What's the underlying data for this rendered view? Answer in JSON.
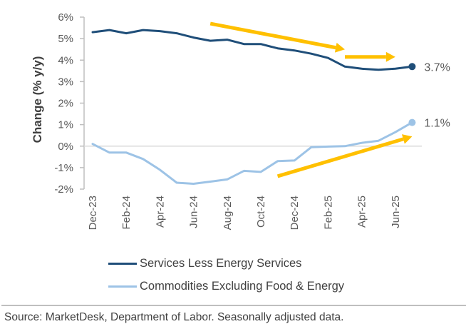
{
  "chart_data": {
    "type": "line",
    "title": "",
    "ylabel": "Change (% y/y)",
    "xlabel": "",
    "ylim": [
      -2,
      6
    ],
    "yticks": [
      -2,
      -1,
      0,
      1,
      2,
      3,
      4,
      5,
      6
    ],
    "ytick_labels": [
      "-2%",
      "-1%",
      "0%",
      "1%",
      "2%",
      "3%",
      "4%",
      "5%",
      "6%"
    ],
    "x": [
      "Dec-23",
      "Jan-24",
      "Feb-24",
      "Mar-24",
      "Apr-24",
      "May-24",
      "Jun-24",
      "Jul-24",
      "Aug-24",
      "Sep-24",
      "Oct-24",
      "Nov-24",
      "Dec-24",
      "Jan-25",
      "Feb-25",
      "Mar-25",
      "Apr-25",
      "May-25",
      "Jun-25",
      "Jul-25"
    ],
    "xtick_labels": [
      "Dec-23",
      "Feb-24",
      "Apr-24",
      "Jun-24",
      "Aug-24",
      "Oct-24",
      "Dec-24",
      "Feb-25",
      "Apr-25",
      "Jun-25"
    ],
    "grid": false,
    "zero_line": true,
    "legend_position": "bottom",
    "series": [
      {
        "name": "Services Less Energy Services",
        "color": "#1f4e79",
        "values": [
          5.3,
          5.4,
          5.25,
          5.4,
          5.35,
          5.25,
          5.05,
          4.9,
          4.95,
          4.75,
          4.75,
          4.55,
          4.45,
          4.3,
          4.1,
          3.7,
          3.6,
          3.55,
          3.6,
          3.7
        ],
        "end_label": "3.7%"
      },
      {
        "name": "Commodities Excluding Food & Energy",
        "color": "#9dc3e6",
        "values": [
          0.1,
          -0.3,
          -0.3,
          -0.6,
          -1.1,
          -1.7,
          -1.75,
          -1.65,
          -1.55,
          -1.15,
          -1.2,
          -0.7,
          -0.67,
          -0.05,
          -0.02,
          0.0,
          0.15,
          0.25,
          0.65,
          1.1
        ],
        "end_label": "1.1%"
      }
    ],
    "annotations": [
      {
        "type": "arrow",
        "color": "#ffc000",
        "description": "downward trend arrow above services line",
        "from": [
          "Jul-24",
          5.7
        ],
        "to": [
          "Mar-25",
          4.5
        ]
      },
      {
        "type": "arrow",
        "color": "#ffc000",
        "description": "flat arrow",
        "from": [
          "Mar-25",
          4.15
        ],
        "to": [
          "Jun-25",
          4.15
        ]
      },
      {
        "type": "arrow",
        "color": "#ffc000",
        "description": "upward trend arrow below commodities line",
        "from": [
          "Nov-24",
          -1.4
        ],
        "to": [
          "Jul-25",
          0.45
        ]
      }
    ]
  },
  "source": "Source: MarketDesk, Department of Labor. Seasonally adjusted data."
}
